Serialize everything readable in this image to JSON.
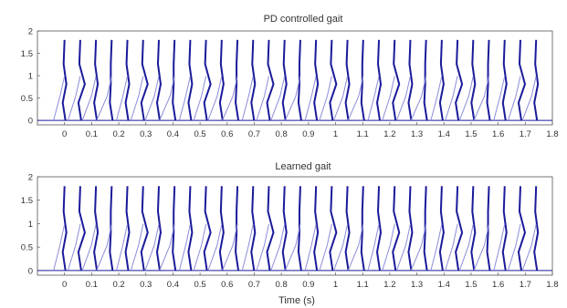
{
  "figure": {
    "xlabel": "Time (s)"
  },
  "chart_data": [
    {
      "type": "line",
      "title": "PD controlled gait",
      "xlabel": "",
      "ylabel": "",
      "xlim": [
        -0.1,
        1.8
      ],
      "ylim": [
        -0.1,
        2
      ],
      "xticks": [
        0,
        0.1,
        0.2,
        0.3,
        0.4,
        0.5,
        0.6,
        0.7,
        0.8,
        0.9,
        1,
        1.1,
        1.2,
        1.3,
        1.4,
        1.5,
        1.6,
        1.7,
        1.8
      ],
      "xtick_labels": [
        "0",
        "0.1",
        "0.2",
        "0.3",
        "0.4",
        "0.5",
        "0.6",
        "0.7",
        "0.8",
        "0.9",
        "1",
        "1.1",
        "1.2",
        "1.3",
        "1.4",
        "1.5",
        "1.6",
        "1.7",
        "1.8"
      ],
      "yticks": [
        0,
        0.5,
        1,
        1.5,
        2
      ],
      "ytick_labels": [
        "0",
        "0.5",
        "1",
        "1.5",
        "2"
      ],
      "grid": false,
      "legend": "none",
      "description_series": "stick-figure snapshots of a walking leg",
      "snapshot_times": [
        0.0,
        0.058,
        0.116,
        0.174,
        0.232,
        0.29,
        0.348,
        0.406,
        0.464,
        0.522,
        0.58,
        0.638,
        0.696,
        0.754,
        0.812,
        0.87,
        0.928,
        0.986,
        1.044,
        1.102,
        1.16,
        1.218,
        1.276,
        1.334,
        1.392,
        1.45,
        1.508,
        1.566,
        1.624,
        1.682,
        1.74
      ],
      "ground_level": 0,
      "hip_height": 1.8,
      "colors": {
        "stance_leg": "#1a1a9a",
        "swing_leg": "#8c8cd8",
        "ground": "#1a1a9a"
      }
    },
    {
      "type": "line",
      "title": "Learned gait",
      "xlabel": "Time (s)",
      "ylabel": "",
      "xlim": [
        -0.1,
        1.8
      ],
      "ylim": [
        -0.1,
        2
      ],
      "xticks": [
        0,
        0.1,
        0.2,
        0.3,
        0.4,
        0.5,
        0.6,
        0.7,
        0.8,
        0.9,
        1,
        1.1,
        1.2,
        1.3,
        1.4,
        1.5,
        1.6,
        1.7,
        1.8
      ],
      "xtick_labels": [
        "0",
        "0.1",
        "0.2",
        "0.3",
        "0.4",
        "0.5",
        "0.6",
        "0.7",
        "0.8",
        "0.9",
        "1",
        "1.1",
        "1.2",
        "1.3",
        "1.4",
        "1.5",
        "1.6",
        "1.7",
        "1.8"
      ],
      "yticks": [
        0,
        0.5,
        1,
        1.5,
        2
      ],
      "ytick_labels": [
        "0",
        "0.5",
        "1",
        "1.5",
        "2"
      ],
      "grid": false,
      "legend": "none",
      "snapshot_times": [
        0.0,
        0.058,
        0.116,
        0.174,
        0.232,
        0.29,
        0.348,
        0.406,
        0.464,
        0.522,
        0.58,
        0.638,
        0.696,
        0.754,
        0.812,
        0.87,
        0.928,
        0.986,
        1.044,
        1.102,
        1.16,
        1.218,
        1.276,
        1.334,
        1.392,
        1.45,
        1.508,
        1.566,
        1.624,
        1.682,
        1.74
      ],
      "ground_level": 0,
      "hip_height": 1.8,
      "colors": {
        "stance_leg": "#1a1a9a",
        "swing_leg": "#8c8cd8",
        "ground": "#1a1a9a"
      }
    }
  ]
}
